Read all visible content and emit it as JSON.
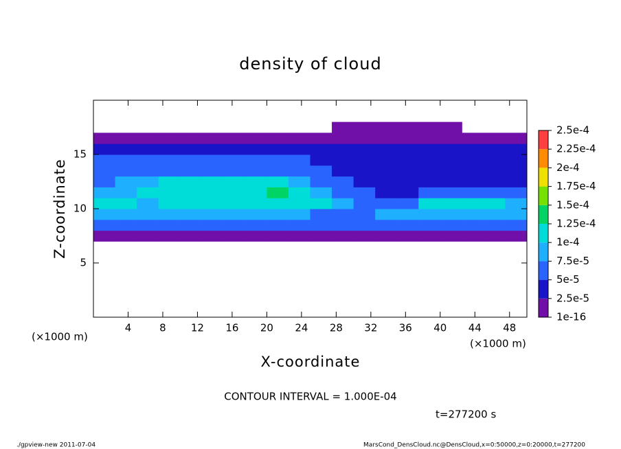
{
  "chart_data": {
    "type": "heatmap",
    "title": "density of cloud",
    "x_label": "X-coordinate",
    "y_label": "Z-coordinate",
    "x_unit_label": "(×1000 m)",
    "y_unit_label": "(×1000 m)",
    "xlim": [
      0,
      50
    ],
    "ylim": [
      0,
      20
    ],
    "xticks": [
      4,
      8,
      12,
      16,
      20,
      24,
      28,
      32,
      36,
      40,
      44,
      48
    ],
    "yticks": [
      5,
      10,
      15
    ],
    "field": {
      "x": [
        1.25,
        3.75,
        6.25,
        8.75,
        11.25,
        13.75,
        16.25,
        18.75,
        21.25,
        23.75,
        26.25,
        28.75,
        31.25,
        33.75,
        36.25,
        38.75,
        41.25,
        43.75,
        46.25,
        48.75
      ],
      "z": [
        7.5,
        8.5,
        9.5,
        10.5,
        11.5,
        12.5,
        13.5,
        14.5,
        15.5,
        16.5,
        17.5
      ],
      "values": [
        [
          1e-06,
          1e-06,
          1e-06,
          1e-06,
          1e-06,
          1e-06,
          1e-06,
          1e-06,
          1e-06,
          1e-06,
          1e-06,
          1e-06,
          1e-06,
          1e-06,
          1e-06,
          1e-06,
          1e-06,
          1e-06,
          1e-06,
          1e-06
        ],
        [
          5e-05,
          5e-05,
          5e-05,
          5e-05,
          5e-05,
          5e-05,
          5e-05,
          5e-05,
          5e-05,
          5e-05,
          5e-05,
          5e-05,
          5e-05,
          5e-05,
          5e-05,
          5e-05,
          5e-05,
          5e-05,
          5e-05,
          5e-05
        ],
        [
          9e-05,
          9e-05,
          8e-05,
          8e-05,
          9e-05,
          9e-05,
          8e-05,
          8e-05,
          8e-05,
          8e-05,
          7e-05,
          7e-05,
          7e-05,
          8e-05,
          8e-05,
          9e-05,
          9e-05,
          9e-05,
          9e-05,
          9e-05
        ],
        [
          0.0001,
          0.0001,
          9e-05,
          0.0001,
          0.0001,
          0.000105,
          0.00011,
          0.000115,
          0.00012,
          0.000115,
          0.0001,
          9e-05,
          7e-05,
          6e-05,
          6e-05,
          0.0001,
          0.0001,
          0.0001,
          0.0001,
          9e-05
        ],
        [
          8e-05,
          9e-05,
          0.0001,
          0.0001,
          0.000105,
          0.00011,
          0.00011,
          0.00012,
          0.000125,
          0.00011,
          9e-05,
          7e-05,
          5e-05,
          3e-05,
          4e-05,
          6e-05,
          6e-05,
          6e-05,
          6e-05,
          6e-05
        ],
        [
          7e-05,
          8e-05,
          9e-05,
          0.0001,
          0.0001,
          0.0001,
          0.000105,
          0.0001,
          0.0001,
          9e-05,
          7e-05,
          5e-05,
          4e-05,
          3e-05,
          3e-05,
          4e-05,
          4e-05,
          4e-05,
          4e-05,
          4e-05
        ],
        [
          6e-05,
          6e-05,
          7e-05,
          7e-05,
          7e-05,
          7e-05,
          7e-05,
          7e-05,
          7e-05,
          6e-05,
          5e-05,
          4e-05,
          3e-05,
          3e-05,
          3e-05,
          3e-05,
          3e-05,
          3e-05,
          4e-05,
          4e-05
        ],
        [
          5e-05,
          5e-05,
          5e-05,
          5e-05,
          5e-05,
          5e-05,
          5e-05,
          5e-05,
          5e-05,
          5e-05,
          4e-05,
          3e-05,
          3e-05,
          3e-05,
          3e-05,
          3e-05,
          3e-05,
          3e-05,
          3e-05,
          3e-05
        ],
        [
          3e-05,
          3e-05,
          3e-05,
          3e-05,
          3e-05,
          3e-05,
          3e-05,
          3e-05,
          3e-05,
          3e-05,
          3e-05,
          3e-05,
          3e-05,
          3e-05,
          3e-05,
          3e-05,
          3e-05,
          3e-05,
          3e-05,
          3e-05
        ],
        [
          1e-05,
          1e-05,
          1e-05,
          1e-05,
          1e-05,
          1e-05,
          1e-05,
          1e-05,
          1e-05,
          1e-05,
          1e-05,
          1e-05,
          1e-05,
          1e-05,
          1e-05,
          1e-05,
          1e-05,
          1e-05,
          1e-05,
          1e-05
        ],
        [
          null,
          null,
          null,
          null,
          null,
          null,
          null,
          null,
          null,
          null,
          null,
          1e-06,
          1e-06,
          1e-06,
          1e-06,
          1e-06,
          1e-06,
          null,
          null,
          null
        ]
      ]
    },
    "colorbar": {
      "ticks": [
        1e-16,
        {
          "value": 2.5e-05,
          "label": "2.5e-5"
        },
        {
          "value": 5e-05,
          "label": "5e-5"
        },
        {
          "value": 7.5e-05,
          "label": "7.5e-5"
        },
        {
          "value": 0.0001,
          "label": "1e-4"
        },
        {
          "value": 0.000125,
          "label": "1.25e-4"
        },
        {
          "value": 0.00015,
          "label": "1.5e-4"
        },
        {
          "value": 0.000175,
          "label": "1.75e-4"
        },
        {
          "value": 0.0002,
          "label": "2e-4"
        },
        {
          "value": 0.000225,
          "label": "2.25e-4"
        },
        {
          "value": 0.00025,
          "label": "2.5e-4"
        }
      ],
      "colors": [
        "#7010a8",
        "#1a14c8",
        "#2a64ff",
        "#1eb0ff",
        "#00dcd8",
        "#00d464",
        "#78e000",
        "#f0e000",
        "#ff8c00",
        "#ff4040"
      ]
    },
    "contour_interval": "CONTOUR INTERVAL = 1.000E-04",
    "time_label": "t=277200 s",
    "footer_left": "./gpview-new  2011-07-04",
    "footer_right": "MarsCond_DensCloud.nc@DensCloud,x=0:50000,z=0:20000,t=277200"
  }
}
